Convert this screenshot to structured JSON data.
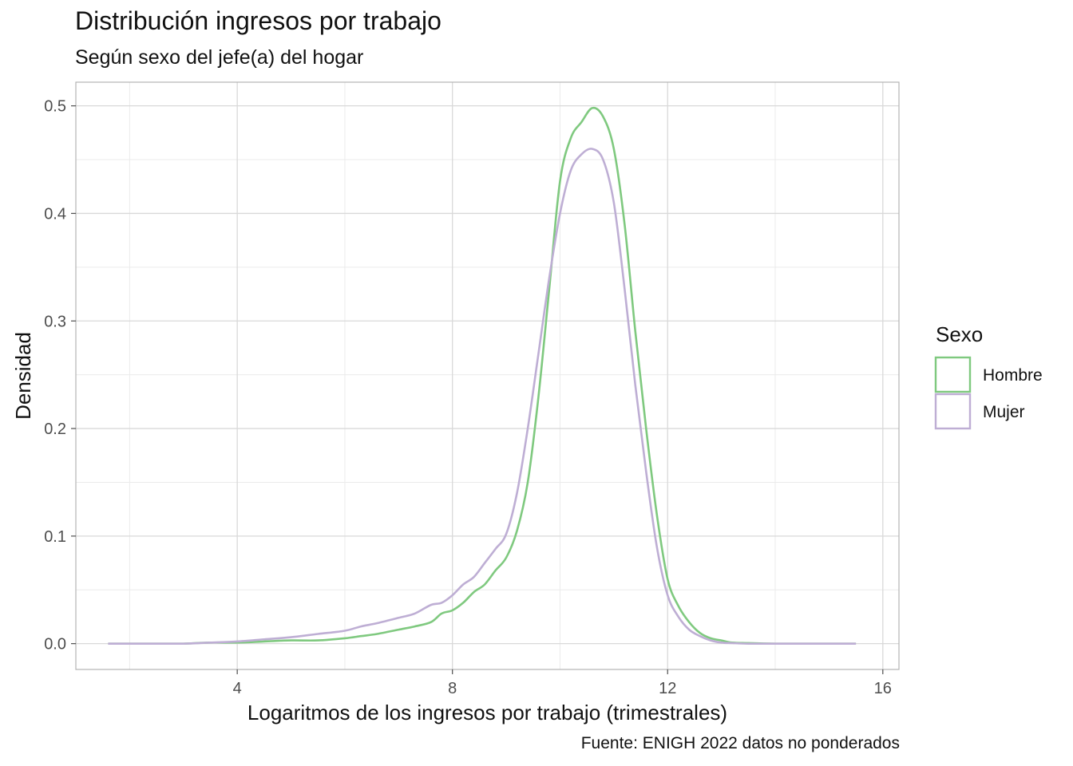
{
  "chart_data": {
    "type": "line",
    "title": "Distribución ingresos por trabajo",
    "subtitle": "Según sexo del jefe(a) del hogar",
    "xlabel": "Logaritmos de los ingresos por trabajo (trimestrales)",
    "ylabel": "Densidad",
    "caption": "Fuente: ENIGH 2022 datos no ponderados",
    "xlim": [
      1.0,
      16.3
    ],
    "ylim": [
      -0.024,
      0.522
    ],
    "x_ticks": [
      4,
      8,
      12,
      16
    ],
    "x_tick_labels": [
      "4",
      "8",
      "12",
      "16"
    ],
    "y_ticks": [
      0.0,
      0.1,
      0.2,
      0.3,
      0.4,
      0.5
    ],
    "y_tick_labels": [
      "0.0",
      "0.1",
      "0.2",
      "0.3",
      "0.4",
      "0.5"
    ],
    "grid": true,
    "legend": {
      "title": "Sexo",
      "position": "right"
    },
    "series": [
      {
        "name": "Hombre",
        "color": "#7fc97f",
        "x": [
          1.6,
          2.5,
          3.0,
          3.5,
          4.0,
          4.5,
          5.0,
          5.5,
          6.0,
          6.3,
          6.6,
          7.0,
          7.3,
          7.6,
          7.8,
          8.0,
          8.2,
          8.4,
          8.6,
          8.8,
          9.0,
          9.2,
          9.4,
          9.6,
          9.8,
          10.0,
          10.2,
          10.4,
          10.6,
          10.8,
          11.0,
          11.2,
          11.4,
          11.6,
          11.8,
          12.0,
          12.2,
          12.4,
          12.6,
          12.8,
          13.0,
          13.2,
          13.5,
          14.0,
          14.5,
          15.0,
          15.5
        ],
        "values": [
          0.0,
          0.0,
          0.0,
          0.001,
          0.001,
          0.002,
          0.003,
          0.003,
          0.005,
          0.007,
          0.009,
          0.013,
          0.016,
          0.02,
          0.028,
          0.031,
          0.038,
          0.048,
          0.055,
          0.068,
          0.08,
          0.105,
          0.15,
          0.23,
          0.33,
          0.43,
          0.47,
          0.485,
          0.498,
          0.49,
          0.46,
          0.39,
          0.29,
          0.2,
          0.12,
          0.06,
          0.035,
          0.02,
          0.01,
          0.005,
          0.003,
          0.001,
          0.0005,
          0.0,
          0.0,
          0.0,
          0.0
        ]
      },
      {
        "name": "Mujer",
        "color": "#beaed4",
        "x": [
          1.6,
          2.5,
          3.0,
          3.5,
          4.0,
          4.5,
          5.0,
          5.5,
          6.0,
          6.3,
          6.6,
          7.0,
          7.3,
          7.6,
          7.8,
          8.0,
          8.2,
          8.4,
          8.6,
          8.8,
          9.0,
          9.2,
          9.4,
          9.6,
          9.8,
          10.0,
          10.2,
          10.4,
          10.6,
          10.8,
          11.0,
          11.2,
          11.4,
          11.6,
          11.8,
          12.0,
          12.2,
          12.4,
          12.6,
          12.8,
          13.0,
          13.2,
          13.5,
          14.0,
          14.5,
          15.0,
          15.5
        ],
        "values": [
          0.0,
          0.0,
          0.0,
          0.001,
          0.002,
          0.004,
          0.006,
          0.009,
          0.012,
          0.016,
          0.019,
          0.024,
          0.028,
          0.036,
          0.038,
          0.045,
          0.055,
          0.062,
          0.075,
          0.088,
          0.102,
          0.14,
          0.2,
          0.27,
          0.34,
          0.4,
          0.44,
          0.455,
          0.46,
          0.45,
          0.41,
          0.33,
          0.24,
          0.16,
          0.09,
          0.045,
          0.025,
          0.013,
          0.007,
          0.003,
          0.001,
          0.0005,
          0.0,
          0.0,
          0.0,
          0.0,
          0.0
        ]
      }
    ]
  }
}
